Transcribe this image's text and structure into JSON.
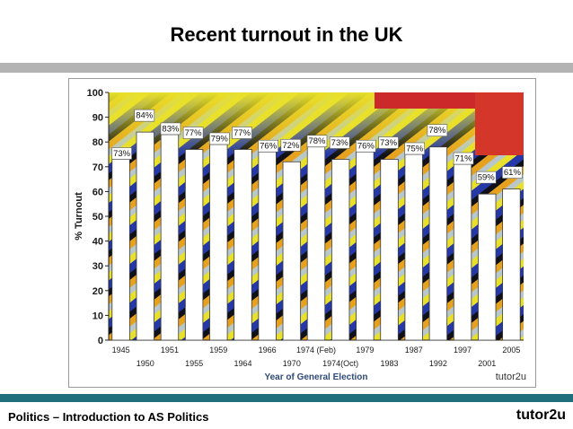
{
  "slide": {
    "title": "Recent turnout in the UK",
    "footer_left": "Politics – Introduction to AS Politics",
    "footer_right": "tutor2u"
  },
  "colors": {
    "rule_gray": "#b3b3b3",
    "rule_teal": "#1f6f7c",
    "bar_fill": "#ffffff",
    "axis_text": "#1a1a1a",
    "xlabel_color": "#2e4a7a"
  },
  "chart_data": {
    "type": "bar",
    "title": "",
    "xlabel": "Year of General Election",
    "ylabel": "% Turnout",
    "ylim": [
      0,
      100
    ],
    "yticks": [
      0,
      10,
      20,
      30,
      40,
      50,
      60,
      70,
      80,
      90,
      100
    ],
    "categories": [
      "1945",
      "1950",
      "1951",
      "1955",
      "1959",
      "1964",
      "1966",
      "1970",
      "1974 (Feb)",
      "1974(Oct)",
      "1979",
      "1983",
      "1987",
      "1992",
      "1997",
      "2001",
      "2005"
    ],
    "values": [
      73,
      84,
      83,
      77,
      79,
      77,
      76,
      72,
      78,
      73,
      76,
      73,
      75,
      78,
      71,
      59,
      61
    ],
    "data_labels": [
      "73%",
      "84%",
      "83%",
      "77%",
      "79%",
      "77%",
      "76%",
      "72%",
      "78%",
      "73%",
      "76%",
      "73%",
      "75%",
      "78%",
      "71%",
      "59%",
      "61%"
    ],
    "watermark": "tutor2u",
    "grid": false,
    "legend": "none"
  }
}
